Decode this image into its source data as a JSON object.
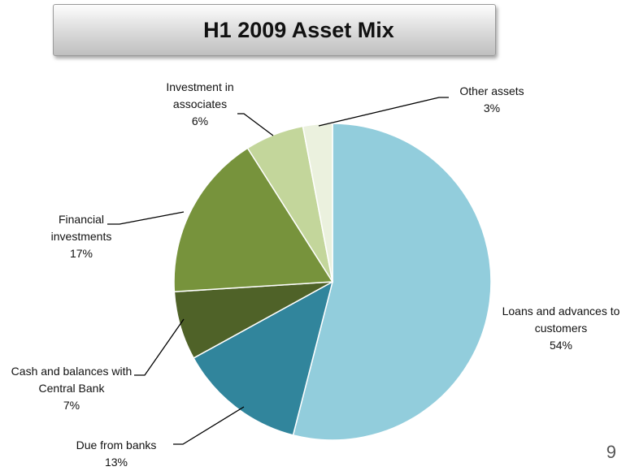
{
  "chart_data": {
    "type": "pie",
    "title": "H1 2009 Asset Mix",
    "categories": [
      "Loans and advances to customers",
      "Due from banks",
      "Cash and balances with Central Bank",
      "Financial investments",
      "Investment in associates",
      "Other assets"
    ],
    "values": [
      54,
      13,
      7,
      17,
      6,
      3
    ],
    "value_labels": [
      "54%",
      "13%",
      "7%",
      "17%",
      "6%",
      "3%"
    ],
    "colors": [
      "#92cddc",
      "#31859c",
      "#4f6228",
      "#77933c",
      "#c3d69b",
      "#ebf1de"
    ]
  },
  "page_number": "9"
}
